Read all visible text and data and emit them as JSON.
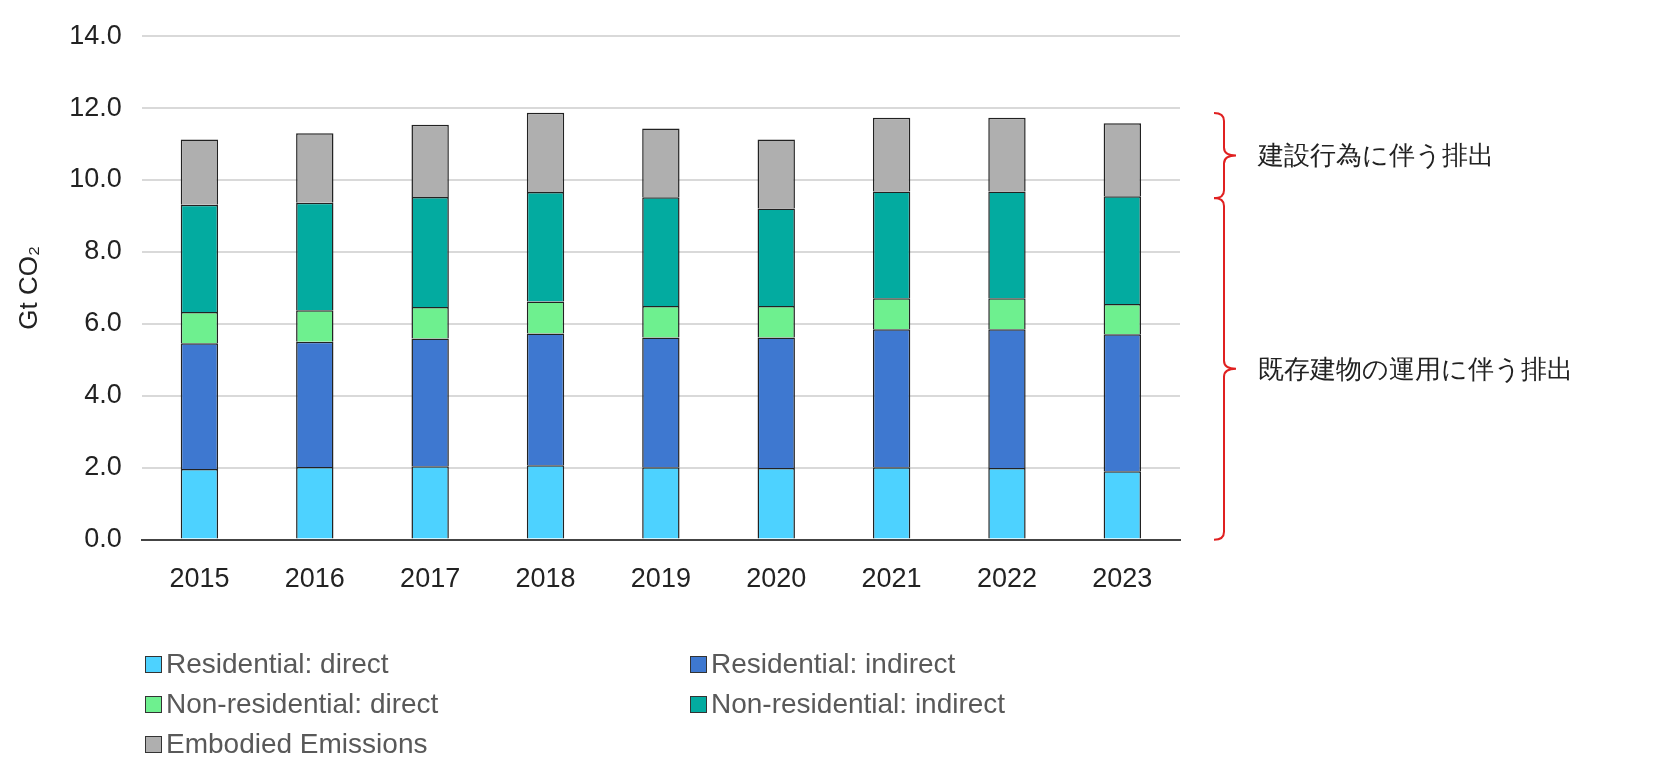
{
  "chart_data": {
    "type": "bar",
    "stacked": true,
    "ylabel": "Gt CO₂",
    "categories": [
      "2015",
      "2016",
      "2017",
      "2018",
      "2019",
      "2020",
      "2021",
      "2022",
      "2023"
    ],
    "series": [
      {
        "name": "Residential: direct",
        "color": "#4dd2ff",
        "values": [
          1.96,
          2.02,
          2.04,
          2.07,
          2.01,
          1.99,
          2.01,
          1.99,
          1.9
        ]
      },
      {
        "name": "Residential: indirect",
        "color": "#3e78d0",
        "values": [
          3.5,
          3.48,
          3.55,
          3.66,
          3.61,
          3.63,
          3.84,
          3.86,
          3.81
        ]
      },
      {
        "name": "Non-residential: direct",
        "color": "#6ef08f",
        "values": [
          0.87,
          0.88,
          0.88,
          0.89,
          0.88,
          0.88,
          0.86,
          0.86,
          0.84
        ]
      },
      {
        "name": "Non-residential: indirect",
        "color": "#03aba0",
        "values": [
          2.98,
          2.99,
          3.06,
          3.05,
          3.02,
          2.71,
          2.97,
          2.97,
          3.0
        ]
      },
      {
        "name": "Embodied Emissions",
        "color": "#afafaf",
        "values": [
          1.82,
          1.93,
          2.01,
          2.2,
          1.91,
          1.92,
          2.05,
          2.05,
          2.03
        ]
      }
    ],
    "ylim": [
      0,
      14
    ],
    "yticks": [
      {
        "value": 0,
        "label": "0.0"
      },
      {
        "value": 2,
        "label": "2.0"
      },
      {
        "value": 4,
        "label": "4.0"
      },
      {
        "value": 6,
        "label": "6.0"
      },
      {
        "value": 8,
        "label": "8.0"
      },
      {
        "value": 10,
        "label": "10.0"
      },
      {
        "value": 12,
        "label": "12.0"
      },
      {
        "value": 14,
        "label": "14.0"
      }
    ],
    "grid": "y",
    "legend": "bottom",
    "annotations": [
      "建設行為に伴う排出",
      "既存建物の運用に伴う排出"
    ]
  }
}
